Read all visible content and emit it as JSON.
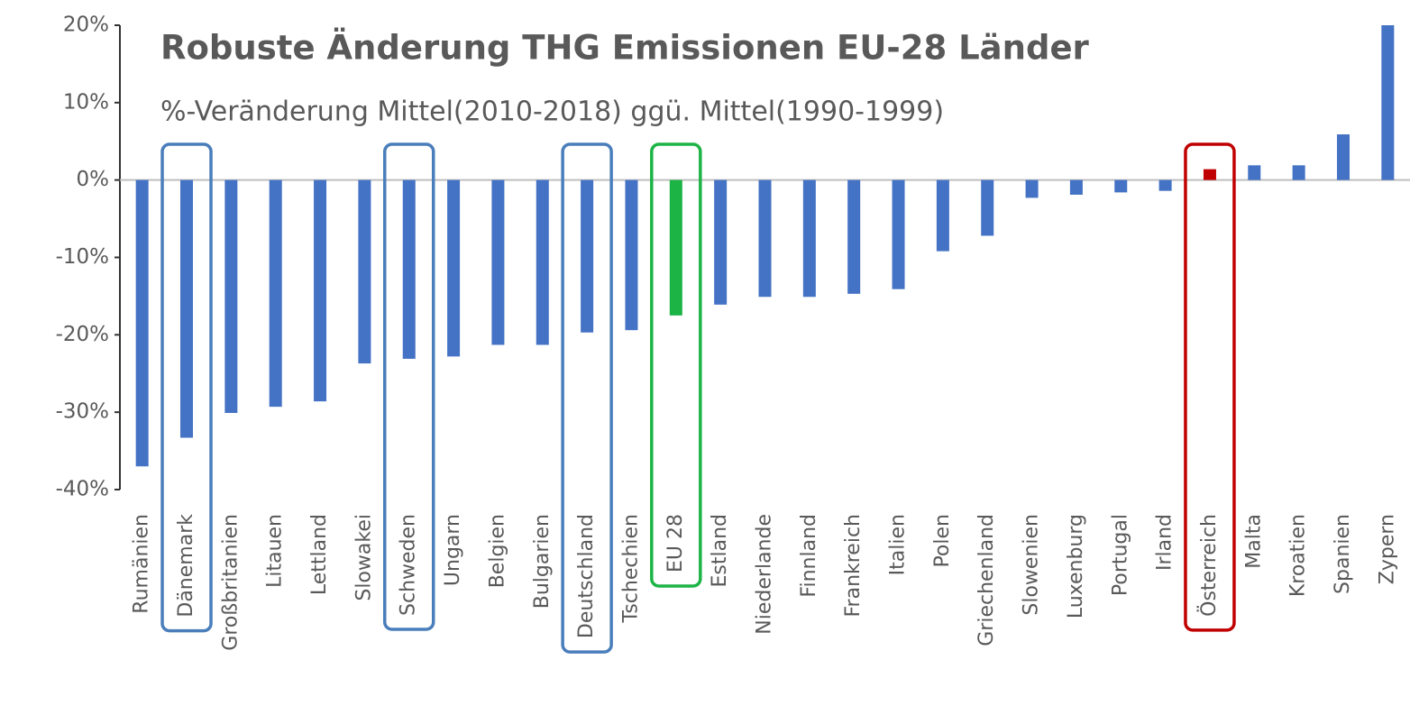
{
  "chart_data": {
    "type": "bar",
    "title": "Robuste Änderung THG Emissionen EU-28 Länder",
    "subtitle": "%-Veränderung Mittel(2010-2018) ggü. Mittel(1990-1999)",
    "categories": [
      "Rumänien",
      "Dänemark",
      "Großbritanien",
      "Litauen",
      "Lettland",
      "Slowakei",
      "Schweden",
      "Ungarn",
      "Belgien",
      "Bulgarien",
      "Deutschland",
      "Tschechien",
      "EU 28",
      "Estland",
      "Niederlande",
      "Finnland",
      "Frankreich",
      "Italien",
      "Polen",
      "Griechenland",
      "Slowenien",
      "Luxenburg",
      "Portugal",
      "Irland",
      "Österreich",
      "Malta",
      "Kroatien",
      "Spanien",
      "Zypern"
    ],
    "values": [
      -37,
      -33.3,
      -30.1,
      -29.3,
      -28.6,
      -23.7,
      -23.1,
      -22.8,
      -21.3,
      -21.3,
      -19.7,
      -19.4,
      -17.5,
      -16.1,
      -15.1,
      -15.1,
      -14.7,
      -14.1,
      -9.2,
      -7.2,
      -2.3,
      -1.9,
      -1.6,
      -1.4,
      1.4,
      1.9,
      1.9,
      5.9,
      20
    ],
    "colors": [
      "#4472c4",
      "#4472c4",
      "#4472c4",
      "#4472c4",
      "#4472c4",
      "#4472c4",
      "#4472c4",
      "#4472c4",
      "#4472c4",
      "#4472c4",
      "#4472c4",
      "#4472c4",
      "#1db446",
      "#4472c4",
      "#4472c4",
      "#4472c4",
      "#4472c4",
      "#4472c4",
      "#4472c4",
      "#4472c4",
      "#4472c4",
      "#4472c4",
      "#4472c4",
      "#4472c4",
      "#c00000",
      "#4472c4",
      "#4472c4",
      "#4472c4",
      "#4472c4"
    ],
    "box_colors": [
      null,
      "#4a7ebb",
      null,
      null,
      null,
      null,
      "#4a7ebb",
      null,
      null,
      null,
      "#4a7ebb",
      null,
      "#1db446",
      null,
      null,
      null,
      null,
      null,
      null,
      null,
      null,
      null,
      null,
      null,
      "#c00000",
      null,
      null,
      null,
      null
    ],
    "ylim": [
      -40,
      20
    ],
    "yticks": [
      {
        "value": 20,
        "label": "20%"
      },
      {
        "value": 10,
        "label": "10%"
      },
      {
        "value": 0,
        "label": "0%"
      },
      {
        "value": -10,
        "label": "-10%"
      },
      {
        "value": -20,
        "label": "-20%"
      },
      {
        "value": -30,
        "label": "-30%"
      },
      {
        "value": -40,
        "label": "-40%"
      }
    ]
  }
}
